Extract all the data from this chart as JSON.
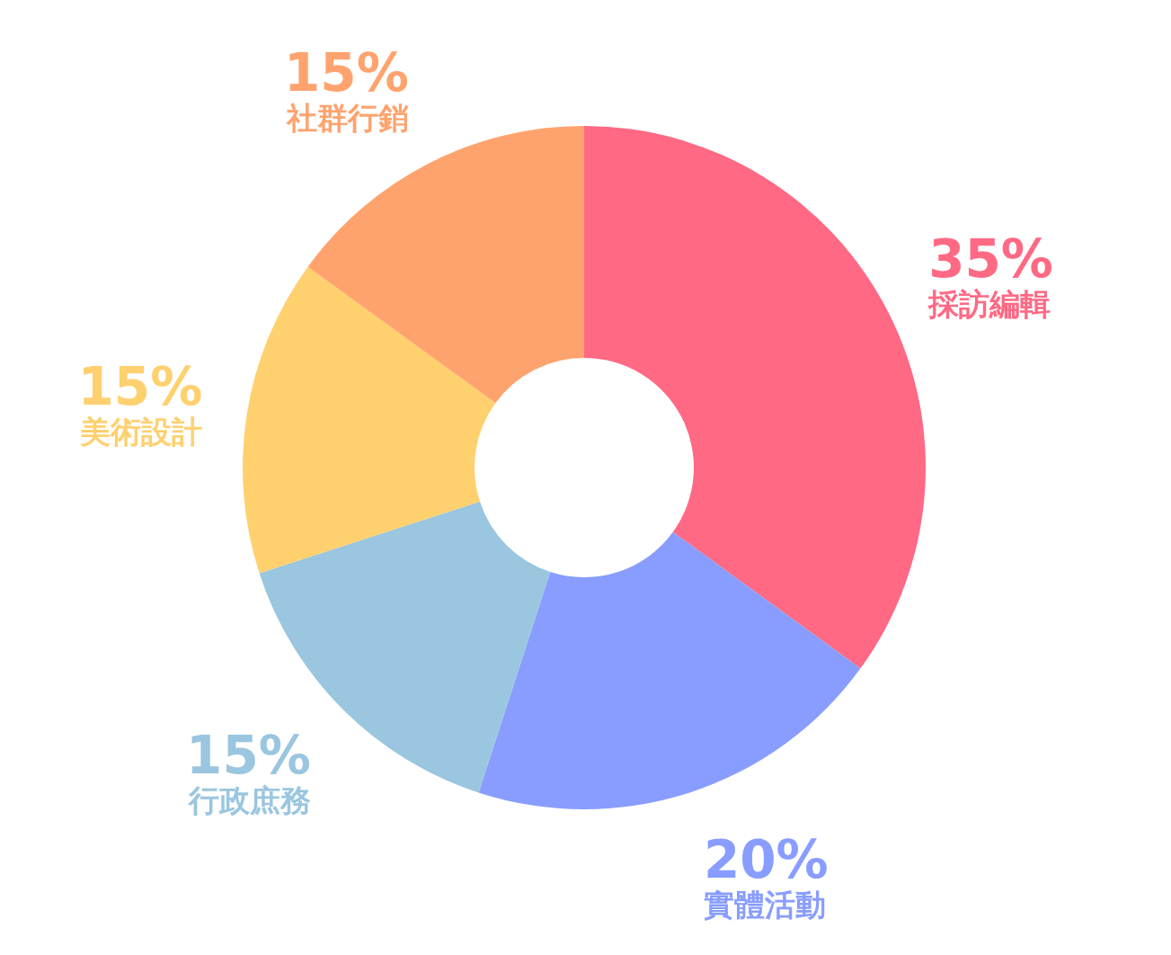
{
  "chart_data": {
    "type": "donut",
    "categories": [
      "採訪編輯",
      "實體活動",
      "行政庶務",
      "美術設計",
      "社群行銷"
    ],
    "values": [
      35,
      20,
      15,
      15,
      15
    ],
    "value_labels": [
      "35%",
      "20%",
      "15%",
      "15%",
      "15%"
    ],
    "colors": [
      "#ff6984",
      "#889dff",
      "#9ac6df",
      "#ffd06e",
      "#ffa36e"
    ]
  }
}
